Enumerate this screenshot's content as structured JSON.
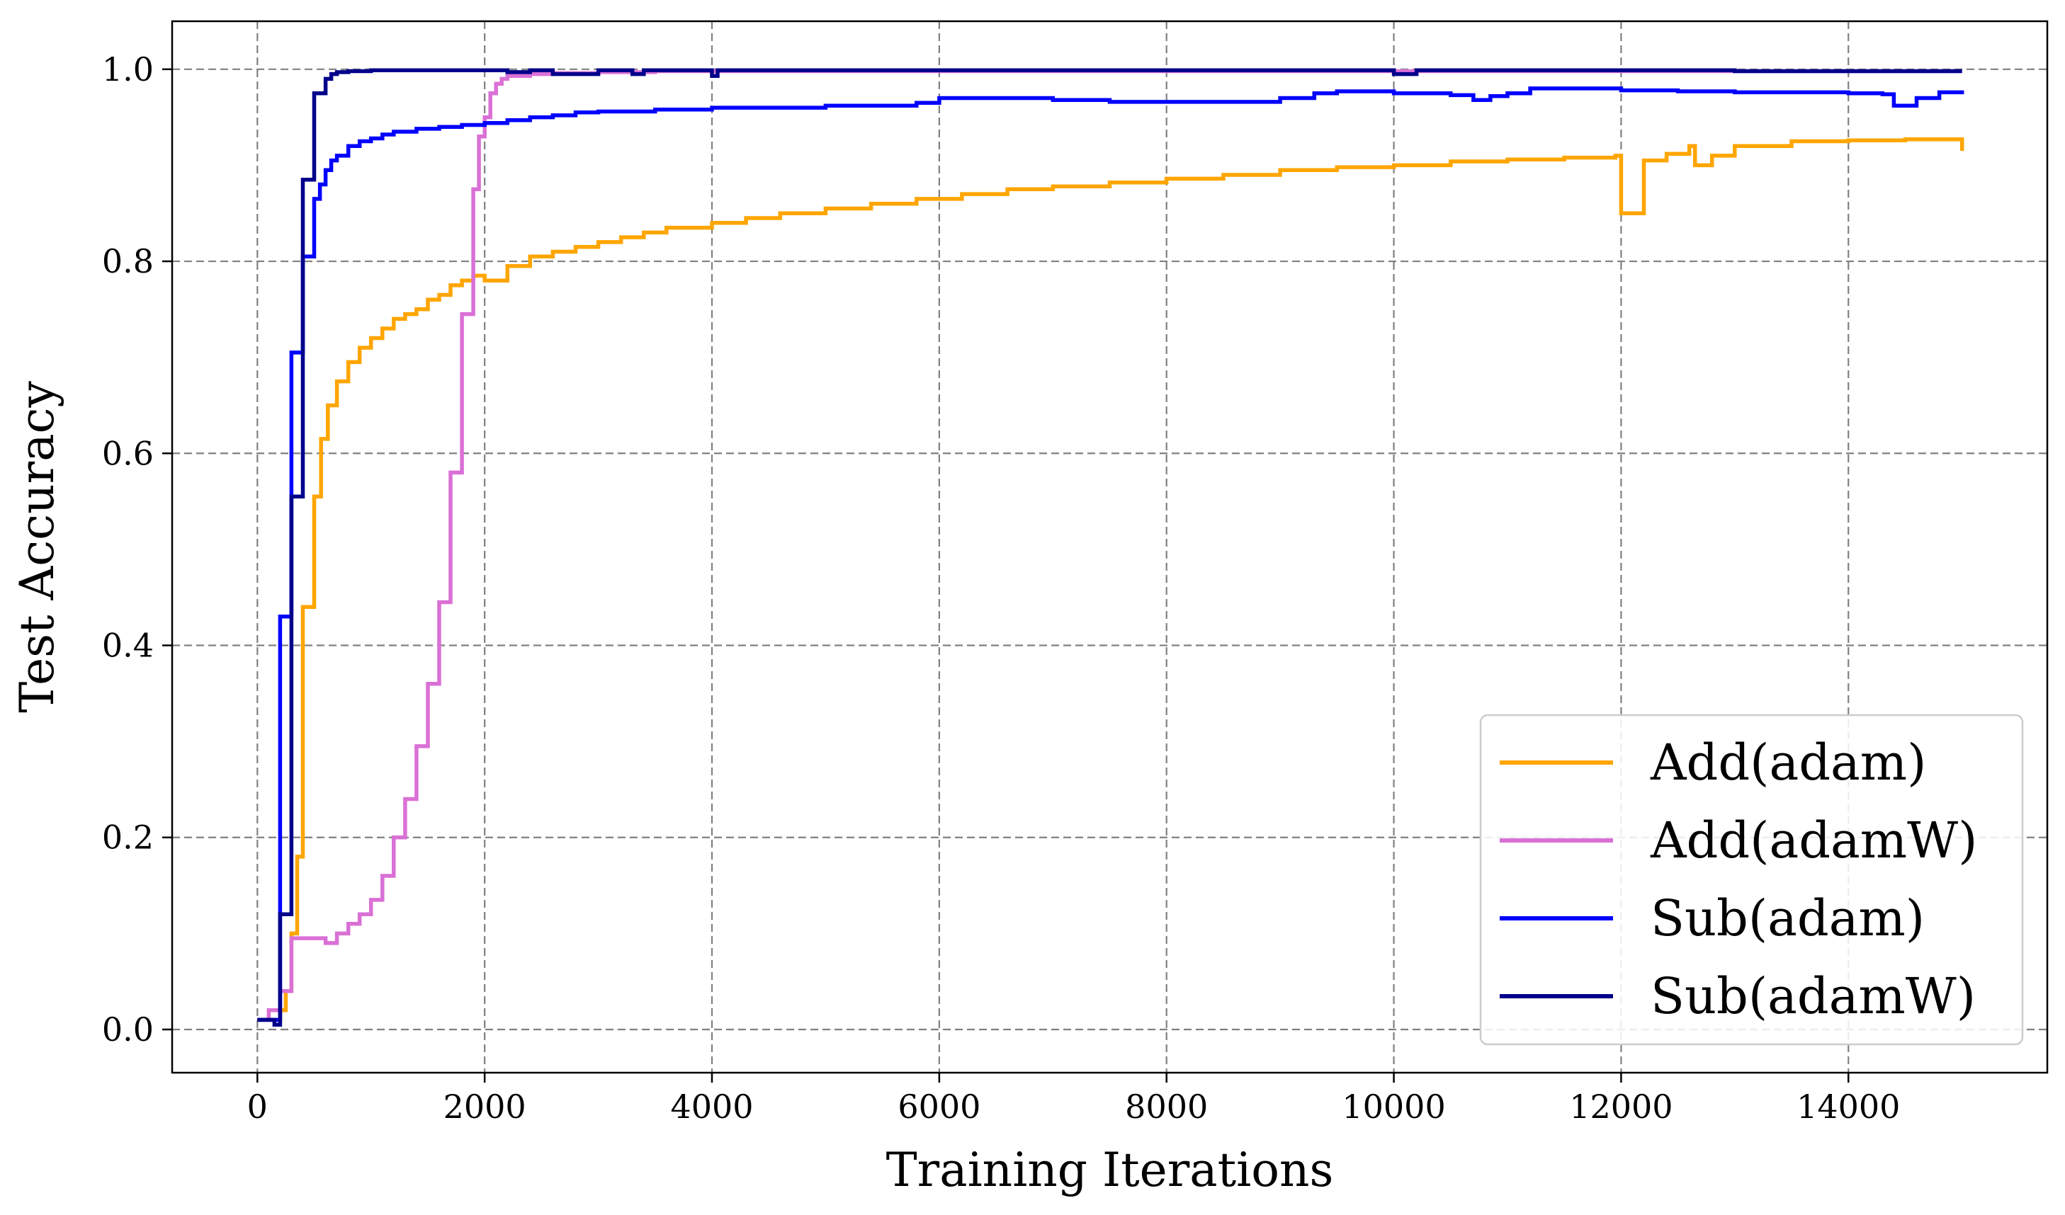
{
  "chart_data": {
    "type": "line",
    "title": "",
    "xlabel": "Training Iterations",
    "ylabel": "Test Accuracy",
    "xlim": [
      -750,
      15750
    ],
    "ylim": [
      -0.045,
      1.05
    ],
    "xticks": [
      0,
      2000,
      4000,
      6000,
      8000,
      10000,
      12000,
      14000
    ],
    "yticks": [
      0.0,
      0.2,
      0.4,
      0.6,
      0.8,
      1.0
    ],
    "xtick_labels": [
      "0",
      "2000",
      "4000",
      "6000",
      "8000",
      "10000",
      "12000",
      "14000"
    ],
    "ytick_labels": [
      "0.0",
      "0.2",
      "0.4",
      "0.6",
      "0.8",
      "1.0"
    ],
    "grid": true,
    "legend_position": "bottom-right",
    "step": true,
    "series": [
      {
        "name": "Add(adam)",
        "color": "#FFA500",
        "x": [
          0,
          100,
          200,
          250,
          300,
          350,
          400,
          450,
          500,
          560,
          620,
          700,
          800,
          900,
          1000,
          1100,
          1200,
          1300,
          1400,
          1500,
          1600,
          1700,
          1800,
          1900,
          2000,
          2200,
          2400,
          2600,
          2800,
          3000,
          3200,
          3400,
          3600,
          3800,
          4000,
          4300,
          4600,
          5000,
          5400,
          5800,
          6200,
          6600,
          7000,
          7500,
          8000,
          8500,
          9000,
          9500,
          10000,
          10500,
          11000,
          11500,
          11950,
          12000,
          12100,
          12200,
          12400,
          12600,
          12650,
          12800,
          13000,
          13500,
          14000,
          14500,
          15000
        ],
        "y": [
          0.01,
          0.01,
          0.02,
          0.04,
          0.1,
          0.18,
          0.44,
          0.44,
          0.555,
          0.615,
          0.65,
          0.675,
          0.695,
          0.71,
          0.72,
          0.73,
          0.74,
          0.745,
          0.75,
          0.76,
          0.765,
          0.775,
          0.78,
          0.785,
          0.78,
          0.795,
          0.805,
          0.81,
          0.815,
          0.82,
          0.825,
          0.83,
          0.835,
          0.835,
          0.84,
          0.845,
          0.85,
          0.855,
          0.86,
          0.865,
          0.87,
          0.875,
          0.878,
          0.882,
          0.886,
          0.89,
          0.895,
          0.898,
          0.9,
          0.904,
          0.906,
          0.908,
          0.91,
          0.85,
          0.85,
          0.905,
          0.912,
          0.92,
          0.9,
          0.91,
          0.92,
          0.925,
          0.926,
          0.927,
          0.915
        ]
      },
      {
        "name": "Add(adamW)",
        "color": "#DA70D6",
        "x": [
          0,
          100,
          200,
          300,
          400,
          500,
          600,
          700,
          800,
          900,
          1000,
          1100,
          1200,
          1300,
          1400,
          1500,
          1600,
          1700,
          1800,
          1900,
          1950,
          2000,
          2050,
          2100,
          2150,
          2200,
          2400,
          2600,
          3000,
          3500,
          4000,
          5000,
          6000,
          8000,
          10000,
          12000,
          14000,
          15000
        ],
        "y": [
          0.01,
          0.02,
          0.04,
          0.095,
          0.095,
          0.095,
          0.09,
          0.1,
          0.11,
          0.12,
          0.135,
          0.16,
          0.2,
          0.24,
          0.295,
          0.36,
          0.445,
          0.58,
          0.745,
          0.875,
          0.93,
          0.95,
          0.975,
          0.985,
          0.99,
          0.993,
          0.995,
          0.996,
          0.997,
          0.998,
          0.998,
          0.998,
          0.998,
          0.998,
          0.998,
          0.998,
          0.998,
          0.998
        ]
      },
      {
        "name": "Sub(adam)",
        "color": "#0000FF",
        "x": [
          0,
          100,
          200,
          250,
          300,
          350,
          400,
          450,
          500,
          550,
          600,
          650,
          700,
          800,
          900,
          1000,
          1100,
          1200,
          1400,
          1600,
          1800,
          2000,
          2200,
          2400,
          2600,
          2800,
          3000,
          3500,
          4000,
          5000,
          5800,
          6000,
          6400,
          7000,
          7500,
          8000,
          9000,
          9300,
          9500,
          10000,
          10500,
          10700,
          10850,
          11000,
          11200,
          12000,
          12500,
          13000,
          14000,
          14300,
          14400,
          14600,
          14800,
          15000
        ],
        "y": [
          0.01,
          0.01,
          0.43,
          0.43,
          0.705,
          0.705,
          0.805,
          0.805,
          0.865,
          0.88,
          0.895,
          0.905,
          0.91,
          0.92,
          0.925,
          0.928,
          0.932,
          0.935,
          0.938,
          0.94,
          0.942,
          0.944,
          0.947,
          0.95,
          0.952,
          0.955,
          0.956,
          0.958,
          0.96,
          0.962,
          0.965,
          0.97,
          0.97,
          0.968,
          0.966,
          0.966,
          0.97,
          0.975,
          0.977,
          0.975,
          0.973,
          0.968,
          0.972,
          0.975,
          0.98,
          0.978,
          0.977,
          0.976,
          0.975,
          0.974,
          0.962,
          0.97,
          0.976,
          0.978
        ]
      },
      {
        "name": "Sub(adamW)",
        "color": "#00008B",
        "x": [
          0,
          100,
          150,
          200,
          300,
          350,
          400,
          450,
          500,
          550,
          600,
          650,
          700,
          800,
          1000,
          1500,
          2000,
          2200,
          2400,
          2600,
          3000,
          3300,
          3400,
          4000,
          4050,
          5000,
          6000,
          8000,
          10000,
          10200,
          12000,
          13000,
          14000,
          15000
        ],
        "y": [
          0.01,
          0.01,
          0.005,
          0.12,
          0.555,
          0.555,
          0.885,
          0.885,
          0.975,
          0.975,
          0.99,
          0.995,
          0.997,
          0.998,
          0.999,
          0.999,
          0.999,
          0.997,
          0.999,
          0.995,
          0.999,
          0.995,
          0.999,
          0.993,
          0.999,
          0.999,
          0.999,
          0.999,
          0.995,
          0.999,
          0.999,
          0.998,
          0.998,
          0.998
        ]
      }
    ]
  }
}
